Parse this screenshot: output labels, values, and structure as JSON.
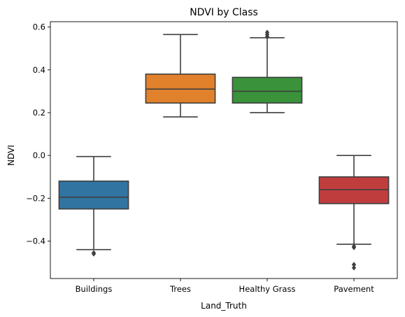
{
  "chart_data": {
    "type": "box",
    "title": "NDVI by Class",
    "xlabel": "Land_Truth",
    "ylabel": "NDVI",
    "categories": [
      "Buildings",
      "Trees",
      "Healthy Grass",
      "Pavement"
    ],
    "ylim": [
      -0.575,
      0.625
    ],
    "yticks": [
      -0.4,
      -0.2,
      0.0,
      0.2,
      0.4,
      0.6
    ],
    "ytick_labels": [
      "−0.4",
      "−0.2",
      "0.0",
      "0.2",
      "0.4",
      "0.6"
    ],
    "grid": false,
    "legend": "none",
    "boxes": [
      {
        "category": "Buildings",
        "color": "#3274a1",
        "whisker_low": -0.44,
        "q1": -0.25,
        "median": -0.195,
        "q3": -0.12,
        "whisker_high": -0.005,
        "outliers": [
          -0.455,
          -0.46
        ]
      },
      {
        "category": "Trees",
        "color": "#e1812c",
        "whisker_low": 0.18,
        "q1": 0.245,
        "median": 0.31,
        "q3": 0.38,
        "whisker_high": 0.565,
        "outliers": []
      },
      {
        "category": "Healthy Grass",
        "color": "#3a923a",
        "whisker_low": 0.2,
        "q1": 0.245,
        "median": 0.3,
        "q3": 0.365,
        "whisker_high": 0.55,
        "outliers": [
          0.555,
          0.565,
          0.575
        ]
      },
      {
        "category": "Pavement",
        "color": "#c03d3e",
        "whisker_low": -0.415,
        "q1": -0.225,
        "median": -0.16,
        "q3": -0.1,
        "whisker_high": 0.0,
        "outliers": [
          -0.425,
          -0.43,
          -0.51,
          -0.525
        ]
      }
    ]
  }
}
